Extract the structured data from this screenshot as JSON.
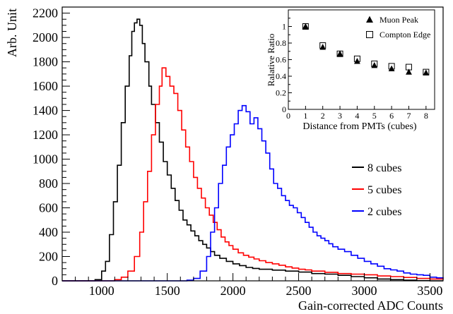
{
  "chart_data": [
    {
      "type": "line",
      "style": "step-histogram",
      "title": "",
      "xlabel": "Gain-corrected ADC Counts",
      "ylabel": "Arb. Unit",
      "xlim": [
        700,
        3600
      ],
      "ylim": [
        0,
        2250
      ],
      "x_ticks": [
        1000,
        1500,
        2000,
        2500,
        3000,
        3500
      ],
      "y_ticks": [
        0,
        200,
        400,
        600,
        800,
        1000,
        1200,
        1400,
        1600,
        1800,
        2000,
        2200
      ],
      "grid": false,
      "legend_position": "right",
      "series": [
        {
          "name": "8 cubes",
          "color": "#000000",
          "points": [
            [
              700,
              0
            ],
            [
              800,
              0
            ],
            [
              900,
              0
            ],
            [
              950,
              10
            ],
            [
              1000,
              80
            ],
            [
              1030,
              160
            ],
            [
              1060,
              380
            ],
            [
              1090,
              650
            ],
            [
              1120,
              950
            ],
            [
              1150,
              1300
            ],
            [
              1180,
              1600
            ],
            [
              1210,
              1850
            ],
            [
              1230,
              2050
            ],
            [
              1250,
              2120
            ],
            [
              1270,
              2150
            ],
            [
              1290,
              2100
            ],
            [
              1310,
              1950
            ],
            [
              1330,
              1800
            ],
            [
              1360,
              1600
            ],
            [
              1380,
              1450
            ],
            [
              1410,
              1300
            ],
            [
              1440,
              1140
            ],
            [
              1470,
              980
            ],
            [
              1500,
              870
            ],
            [
              1530,
              760
            ],
            [
              1560,
              660
            ],
            [
              1590,
              580
            ],
            [
              1620,
              500
            ],
            [
              1650,
              460
            ],
            [
              1680,
              410
            ],
            [
              1710,
              370
            ],
            [
              1740,
              330
            ],
            [
              1770,
              300
            ],
            [
              1800,
              270
            ],
            [
              1830,
              240
            ],
            [
              1860,
              210
            ],
            [
              1900,
              185
            ],
            [
              1950,
              160
            ],
            [
              2000,
              140
            ],
            [
              2050,
              125
            ],
            [
              2100,
              110
            ],
            [
              2150,
              102
            ],
            [
              2200,
              95
            ],
            [
              2300,
              88
            ],
            [
              2400,
              80
            ],
            [
              2500,
              72
            ],
            [
              2600,
              60
            ],
            [
              2700,
              55
            ],
            [
              2800,
              45
            ],
            [
              2900,
              35
            ],
            [
              3000,
              25
            ],
            [
              3100,
              15
            ],
            [
              3200,
              10
            ],
            [
              3300,
              5
            ],
            [
              3400,
              2
            ],
            [
              3500,
              0
            ]
          ]
        },
        {
          "name": "5 cubes",
          "color": "#ff0000",
          "points": [
            [
              700,
              0
            ],
            [
              1050,
              0
            ],
            [
              1100,
              10
            ],
            [
              1150,
              30
            ],
            [
              1200,
              80
            ],
            [
              1250,
              200
            ],
            [
              1290,
              400
            ],
            [
              1320,
              650
            ],
            [
              1350,
              900
            ],
            [
              1380,
              1200
            ],
            [
              1410,
              1450
            ],
            [
              1440,
              1600
            ],
            [
              1460,
              1750
            ],
            [
              1490,
              1680
            ],
            [
              1520,
              1600
            ],
            [
              1550,
              1540
            ],
            [
              1580,
              1400
            ],
            [
              1610,
              1240
            ],
            [
              1640,
              1100
            ],
            [
              1670,
              980
            ],
            [
              1700,
              850
            ],
            [
              1730,
              760
            ],
            [
              1760,
              680
            ],
            [
              1790,
              600
            ],
            [
              1820,
              540
            ],
            [
              1850,
              480
            ],
            [
              1880,
              420
            ],
            [
              1910,
              360
            ],
            [
              1940,
              320
            ],
            [
              1970,
              290
            ],
            [
              2000,
              260
            ],
            [
              2040,
              230
            ],
            [
              2080,
              210
            ],
            [
              2120,
              195
            ],
            [
              2160,
              180
            ],
            [
              2200,
              165
            ],
            [
              2250,
              150
            ],
            [
              2300,
              140
            ],
            [
              2350,
              128
            ],
            [
              2400,
              115
            ],
            [
              2450,
              105
            ],
            [
              2500,
              95
            ],
            [
              2550,
              90
            ],
            [
              2600,
              80
            ],
            [
              2700,
              70
            ],
            [
              2800,
              60
            ],
            [
              2900,
              55
            ],
            [
              3000,
              50
            ],
            [
              3100,
              40
            ],
            [
              3200,
              35
            ],
            [
              3300,
              28
            ],
            [
              3400,
              20
            ],
            [
              3500,
              15
            ],
            [
              3600,
              10
            ]
          ]
        },
        {
          "name": "2 cubes",
          "color": "#0000ff",
          "points": [
            [
              700,
              0
            ],
            [
              1600,
              0
            ],
            [
              1650,
              5
            ],
            [
              1700,
              20
            ],
            [
              1750,
              80
            ],
            [
              1800,
              200
            ],
            [
              1830,
              400
            ],
            [
              1860,
              600
            ],
            [
              1890,
              800
            ],
            [
              1920,
              950
            ],
            [
              1950,
              1100
            ],
            [
              1980,
              1200
            ],
            [
              2010,
              1290
            ],
            [
              2040,
              1400
            ],
            [
              2070,
              1440
            ],
            [
              2100,
              1390
            ],
            [
              2130,
              1290
            ],
            [
              2160,
              1340
            ],
            [
              2190,
              1250
            ],
            [
              2220,
              1150
            ],
            [
              2250,
              1050
            ],
            [
              2280,
              920
            ],
            [
              2310,
              800
            ],
            [
              2340,
              760
            ],
            [
              2370,
              700
            ],
            [
              2400,
              660
            ],
            [
              2430,
              620
            ],
            [
              2460,
              600
            ],
            [
              2490,
              560
            ],
            [
              2520,
              520
            ],
            [
              2550,
              480
            ],
            [
              2580,
              440
            ],
            [
              2610,
              400
            ],
            [
              2640,
              370
            ],
            [
              2670,
              350
            ],
            [
              2700,
              330
            ],
            [
              2730,
              305
            ],
            [
              2760,
              280
            ],
            [
              2800,
              260
            ],
            [
              2850,
              240
            ],
            [
              2900,
              210
            ],
            [
              2950,
              185
            ],
            [
              3000,
              160
            ],
            [
              3050,
              140
            ],
            [
              3100,
              120
            ],
            [
              3150,
              100
            ],
            [
              3200,
              90
            ],
            [
              3250,
              80
            ],
            [
              3300,
              65
            ],
            [
              3350,
              55
            ],
            [
              3400,
              50
            ],
            [
              3450,
              45
            ],
            [
              3500,
              30
            ],
            [
              3550,
              25
            ],
            [
              3600,
              20
            ]
          ]
        }
      ]
    },
    {
      "type": "scatter",
      "title": "",
      "xlabel": "Distance from PMTs (cubes)",
      "ylabel": "Ralative Ratio",
      "xlim": [
        0,
        8.5
      ],
      "ylim": [
        0,
        1.2
      ],
      "x_ticks": [
        0,
        1,
        2,
        3,
        4,
        5,
        6,
        7,
        8
      ],
      "y_ticks": [
        0,
        0.2,
        0.4,
        0.6,
        0.8,
        1
      ],
      "grid": false,
      "legend_position": "top-right",
      "series": [
        {
          "name": "Muon Peak",
          "marker": "filled-triangle",
          "x": [
            1,
            2,
            3,
            4,
            5,
            6,
            7,
            8
          ],
          "y": [
            1.0,
            0.75,
            0.67,
            0.58,
            0.53,
            0.49,
            0.45,
            0.44
          ]
        },
        {
          "name": "Compton Edge",
          "marker": "open-square",
          "x": [
            1,
            2,
            3,
            4,
            5,
            6,
            7,
            8
          ],
          "y": [
            1.0,
            0.77,
            0.67,
            0.61,
            0.55,
            0.52,
            0.51,
            0.45
          ]
        }
      ]
    }
  ]
}
